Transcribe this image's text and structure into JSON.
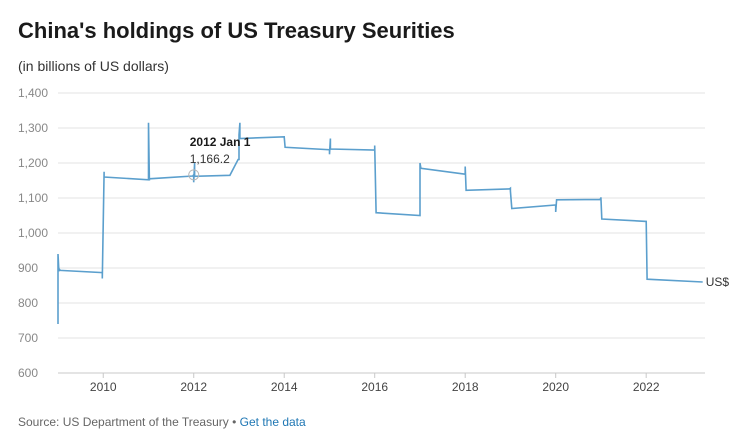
{
  "header": {
    "title": "China's holdings of US Treasury Seurities",
    "subtitle": "(in billions of US dollars)"
  },
  "footer": {
    "source": "Source: US Department of the Treasury • ",
    "link_label": "Get the data"
  },
  "colors": {
    "line": "#5b9fcd",
    "grid": "#e3e3e3",
    "text": "#222222"
  },
  "chart_data": {
    "type": "line",
    "title": "China's holdings of US Treasury Seurities",
    "ylabel": "(in billions of US dollars)",
    "xlabel": "",
    "ylim": [
      600,
      1400
    ],
    "xlim": [
      2009.0,
      2023.3
    ],
    "yticks": [
      600,
      700,
      800,
      900,
      1000,
      1100,
      1200,
      1300,
      1400
    ],
    "ytick_labels": [
      "600",
      "700",
      "800",
      "900",
      "1,000",
      "1,100",
      "1,200",
      "1,300",
      "1,400"
    ],
    "xticks": [
      2010,
      2012,
      2014,
      2016,
      2018,
      2020,
      2022
    ],
    "xtick_labels": [
      "2010",
      "2012",
      "2014",
      "2016",
      "2018",
      "2020",
      "2022"
    ],
    "series": [
      {
        "name": "US$",
        "x": [
          2009.0,
          2009.0,
          2009.02,
          2009.02,
          2009.05,
          2009.05,
          2009.98,
          2009.98,
          2010.02,
          2010.02,
          2011.0,
          2011.0,
          2011.02,
          2011.02,
          2011.98,
          2012.0,
          2012.0,
          2012.02,
          2012.02,
          2012.8,
          2012.98,
          2013.0,
          2013.0,
          2013.02,
          2013.02,
          2014.0,
          2014.02,
          2015.0,
          2015.0,
          2015.02,
          2015.02,
          2016.0,
          2016.0,
          2016.03,
          2017.0,
          2017.0,
          2017.02,
          2018.0,
          2018.0,
          2018.02,
          2018.98,
          2019.0,
          2019.0,
          2019.03,
          2020.0,
          2020.0,
          2020.02,
          2020.98,
          2021.0,
          2021.0,
          2021.02,
          2022.0,
          2022.02,
          2023.25
        ],
        "values": [
          740,
          940,
          890,
          898,
          893,
          893,
          887,
          870,
          1175,
          1160,
          1152,
          1315,
          1150,
          1155,
          1163,
          1166.2,
          1145,
          1200,
          1162,
          1165,
          1210,
          1210,
          1280,
          1315,
          1270,
          1275,
          1245,
          1238,
          1225,
          1270,
          1240,
          1237,
          1250,
          1058,
          1050,
          1200,
          1185,
          1168,
          1190,
          1122,
          1126,
          1128,
          1120,
          1070,
          1080,
          1060,
          1095,
          1096,
          1100,
          1102,
          1040,
          1033,
          868,
          860
        ]
      }
    ],
    "series_label": "US$",
    "annotation": {
      "x": 2012.0,
      "y": 1166.2,
      "label": "2012 Jan 1",
      "value_label": "1,166.2"
    },
    "grid": true,
    "legend": "end-of-line label"
  }
}
